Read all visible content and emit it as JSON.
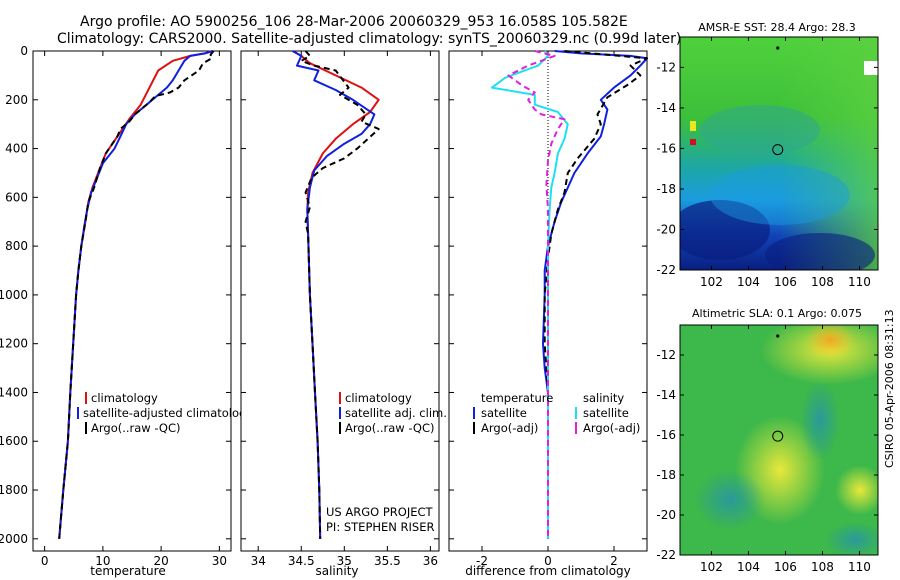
{
  "header": {
    "line1": "Argo profile: AO 5900256_106 28-Mar-2006 20060329_953 16.058S 105.582E",
    "line2": "Climatology: CARS2000. Satellite-adjusted climatology: synTS_20060329.nc (0.99d later)"
  },
  "colors": {
    "climatology": "#e01010",
    "satellite": "#1020e0",
    "argo": "#000000",
    "salinity_sat": "#20e0f0",
    "salinity_argo": "#e020e0"
  },
  "chart_data": [
    {
      "id": "temperature",
      "type": "line",
      "xlabel": "temperature",
      "ylabel": "",
      "xlim": [
        -2,
        32
      ],
      "ylim": [
        2050,
        0
      ],
      "xticks": [
        0,
        10,
        20,
        30
      ],
      "yticks": [
        0,
        200,
        400,
        600,
        800,
        1000,
        1200,
        1400,
        1600,
        1800,
        2000
      ],
      "legend": [
        "climatology",
        "satellite-adjusted climatology",
        "Argo(..raw -QC)"
      ],
      "series": [
        {
          "name": "climatology",
          "color": "#e01010",
          "dash": "",
          "points": [
            [
              28.8,
              0
            ],
            [
              27.5,
              10
            ],
            [
              25,
              20
            ],
            [
              22,
              40
            ],
            [
              19.5,
              80
            ],
            [
              18,
              150
            ],
            [
              16.5,
              220
            ],
            [
              14.5,
              280
            ],
            [
              12.5,
              350
            ],
            [
              10.5,
              420
            ],
            [
              9.5,
              480
            ],
            [
              8.2,
              560
            ],
            [
              7.5,
              620
            ],
            [
              7,
              700
            ],
            [
              6.3,
              800
            ],
            [
              5.8,
              900
            ],
            [
              5.4,
              1000
            ],
            [
              4.9,
              1200
            ],
            [
              4.4,
              1400
            ],
            [
              4,
              1600
            ],
            [
              3.2,
              1800
            ],
            [
              2.5,
              2000
            ]
          ]
        },
        {
          "name": "satellite-adjusted climatology",
          "color": "#1020e0",
          "dash": "",
          "points": [
            [
              28.9,
              0
            ],
            [
              27.5,
              10
            ],
            [
              25,
              20
            ],
            [
              24,
              40
            ],
            [
              23,
              80
            ],
            [
              22,
              120
            ],
            [
              21,
              150
            ],
            [
              19.5,
              180
            ],
            [
              17.5,
              220
            ],
            [
              15.5,
              260
            ],
            [
              14,
              300
            ],
            [
              13,
              350
            ],
            [
              12,
              400
            ],
            [
              10,
              460
            ],
            [
              9,
              520
            ],
            [
              8,
              580
            ],
            [
              7.3,
              650
            ],
            [
              6.8,
              720
            ],
            [
              6.3,
              800
            ],
            [
              5.8,
              900
            ],
            [
              5.4,
              1000
            ],
            [
              4.9,
              1200
            ],
            [
              4.4,
              1400
            ],
            [
              4,
              1600
            ],
            [
              3.2,
              1800
            ],
            [
              2.5,
              2000
            ]
          ]
        },
        {
          "name": "Argo(..raw -QC)",
          "color": "#000000",
          "dash": "6,4",
          "points": [
            [
              29,
              0
            ],
            [
              28.5,
              15
            ],
            [
              28.7,
              30
            ],
            [
              27.2,
              50
            ],
            [
              26.5,
              80
            ],
            [
              24,
              120
            ],
            [
              23,
              150
            ],
            [
              21.5,
              170
            ],
            [
              19,
              185
            ],
            [
              18,
              210
            ],
            [
              17,
              230
            ],
            [
              15.5,
              260
            ],
            [
              14.5,
              290
            ],
            [
              13,
              320
            ],
            [
              12.5,
              350
            ],
            [
              10.5,
              420
            ],
            [
              9.5,
              480
            ],
            [
              8.5,
              560
            ],
            [
              7.5,
              620
            ],
            [
              7,
              700
            ],
            [
              6.3,
              800
            ],
            [
              5.8,
              900
            ],
            [
              5.4,
              1000
            ],
            [
              4.9,
              1200
            ],
            [
              4.4,
              1400
            ],
            [
              4,
              1600
            ],
            [
              3.2,
              1800
            ],
            [
              2.5,
              2000
            ]
          ]
        }
      ]
    },
    {
      "id": "salinity",
      "type": "line",
      "xlabel": "salinity",
      "xlim": [
        33.8,
        36.1
      ],
      "ylim": [
        2050,
        0
      ],
      "xticks": [
        34,
        34.5,
        35,
        35.5,
        36
      ],
      "legend": [
        "climatology",
        "satellite adj. clim.",
        "Argo(..raw -QC)"
      ],
      "annotation": [
        "US ARGO PROJECT",
        "PI: STEPHEN RISER"
      ],
      "series": [
        {
          "name": "climatology",
          "color": "#e01010",
          "dash": "",
          "points": [
            [
              34.4,
              0
            ],
            [
              34.5,
              20
            ],
            [
              34.6,
              50
            ],
            [
              34.9,
              100
            ],
            [
              35.2,
              150
            ],
            [
              35.4,
              200
            ],
            [
              35.3,
              250
            ],
            [
              35.1,
              300
            ],
            [
              34.9,
              360
            ],
            [
              34.75,
              420
            ],
            [
              34.63,
              500
            ],
            [
              34.58,
              580
            ],
            [
              34.57,
              650
            ],
            [
              34.58,
              750
            ],
            [
              34.6,
              1000
            ],
            [
              34.63,
              1200
            ],
            [
              34.66,
              1400
            ],
            [
              34.69,
              1600
            ],
            [
              34.71,
              1800
            ],
            [
              34.72,
              2000
            ]
          ]
        },
        {
          "name": "satellite adj. clim.",
          "color": "#1020e0",
          "dash": "",
          "points": [
            [
              34.4,
              0
            ],
            [
              34.5,
              20
            ],
            [
              34.45,
              60
            ],
            [
              34.7,
              80
            ],
            [
              34.65,
              120
            ],
            [
              34.9,
              160
            ],
            [
              35.1,
              200
            ],
            [
              35.35,
              260
            ],
            [
              35.3,
              300
            ],
            [
              35.2,
              340
            ],
            [
              35,
              380
            ],
            [
              34.8,
              430
            ],
            [
              34.65,
              490
            ],
            [
              34.6,
              560
            ],
            [
              34.57,
              650
            ],
            [
              34.58,
              750
            ],
            [
              34.6,
              1000
            ],
            [
              34.63,
              1200
            ],
            [
              34.66,
              1400
            ],
            [
              34.69,
              1600
            ],
            [
              34.71,
              1800
            ],
            [
              34.72,
              2000
            ]
          ]
        },
        {
          "name": "Argo(..raw -QC)",
          "color": "#000000",
          "dash": "6,4",
          "points": [
            [
              34.55,
              0
            ],
            [
              34.6,
              20
            ],
            [
              34.5,
              40
            ],
            [
              34.65,
              60
            ],
            [
              34.9,
              80
            ],
            [
              35.05,
              150
            ],
            [
              34.95,
              180
            ],
            [
              35.15,
              220
            ],
            [
              35.25,
              260
            ],
            [
              35.2,
              290
            ],
            [
              35.4,
              320
            ],
            [
              35.15,
              400
            ],
            [
              35,
              440
            ],
            [
              34.75,
              480
            ],
            [
              34.62,
              520
            ],
            [
              34.55,
              580
            ],
            [
              34.6,
              640
            ],
            [
              34.55,
              700
            ],
            [
              34.58,
              750
            ],
            [
              34.6,
              1000
            ],
            [
              34.63,
              1200
            ],
            [
              34.66,
              1400
            ],
            [
              34.69,
              1600
            ],
            [
              34.71,
              1800
            ],
            [
              34.72,
              2000
            ]
          ]
        }
      ]
    },
    {
      "id": "difference",
      "type": "line",
      "xlabel": "difference from climatology",
      "xlim": [
        -3,
        3
      ],
      "ylim": [
        2050,
        0
      ],
      "xticks": [
        -2,
        0,
        2
      ],
      "legend_headers": [
        "temperature",
        "salinity"
      ],
      "legend": [
        "satellite",
        "Argo(-adj)",
        "satellite",
        "Argo(-adj)"
      ],
      "series": [
        {
          "name": "temperature satellite",
          "color": "#1020e0",
          "dash": "",
          "points": [
            [
              0.2,
              0
            ],
            [
              1,
              10
            ],
            [
              2.5,
              20
            ],
            [
              3,
              30
            ],
            [
              2.8,
              60
            ],
            [
              2.5,
              100
            ],
            [
              2,
              150
            ],
            [
              1.6,
              200
            ],
            [
              1.8,
              240
            ],
            [
              1.7,
              300
            ],
            [
              1.6,
              350
            ],
            [
              1.2,
              420
            ],
            [
              0.8,
              500
            ],
            [
              0.6,
              560
            ],
            [
              0.4,
              620
            ],
            [
              0.2,
              700
            ],
            [
              0,
              800
            ],
            [
              -0.1,
              900
            ],
            [
              -0.1,
              1000
            ],
            [
              -0.15,
              1200
            ],
            [
              -0.1,
              1300
            ],
            [
              0,
              1400
            ],
            [
              0,
              2000
            ]
          ]
        },
        {
          "name": "temperature Argo(-adj)",
          "color": "#000000",
          "dash": "6,4",
          "points": [
            [
              0.5,
              0
            ],
            [
              3,
              30
            ],
            [
              2.5,
              60
            ],
            [
              2.8,
              100
            ],
            [
              2.4,
              140
            ],
            [
              1.8,
              190
            ],
            [
              1.5,
              260
            ],
            [
              1.6,
              300
            ],
            [
              1.4,
              360
            ],
            [
              0.9,
              440
            ],
            [
              0.6,
              500
            ],
            [
              0.5,
              580
            ],
            [
              0.3,
              650
            ],
            [
              0.1,
              750
            ],
            [
              0,
              850
            ],
            [
              -0.1,
              1000
            ],
            [
              -0.1,
              1200
            ],
            [
              0,
              1400
            ],
            [
              0,
              2000
            ]
          ]
        },
        {
          "name": "salinity satellite",
          "color": "#20e0f0",
          "dash": "",
          "points": [
            [
              -0.1,
              0
            ],
            [
              0,
              20
            ],
            [
              -0.3,
              60
            ],
            [
              -1.3,
              110
            ],
            [
              -1.7,
              150
            ],
            [
              -0.4,
              180
            ],
            [
              -0.4,
              220
            ],
            [
              0.3,
              250
            ],
            [
              0.6,
              300
            ],
            [
              0.5,
              360
            ],
            [
              0.3,
              420
            ],
            [
              0.2,
              500
            ],
            [
              0.1,
              560
            ],
            [
              0.05,
              650
            ],
            [
              0,
              800
            ],
            [
              0,
              2000
            ]
          ]
        },
        {
          "name": "salinity Argo(-adj)",
          "color": "#e020e0",
          "dash": "6,4",
          "points": [
            [
              -0.4,
              0
            ],
            [
              0.2,
              20
            ],
            [
              -0.2,
              40
            ],
            [
              -0.6,
              60
            ],
            [
              -1.2,
              100
            ],
            [
              -0.8,
              140
            ],
            [
              -0.4,
              170
            ],
            [
              -0.6,
              200
            ],
            [
              -0.4,
              240
            ],
            [
              -0.2,
              260
            ],
            [
              0.5,
              280
            ],
            [
              0.3,
              320
            ],
            [
              0.1,
              380
            ],
            [
              0,
              450
            ],
            [
              -0.05,
              550
            ],
            [
              0,
              650
            ],
            [
              0,
              800
            ],
            [
              0,
              2000
            ]
          ]
        }
      ]
    },
    {
      "id": "sst_map",
      "type": "heatmap",
      "title": "AMSR-E SST: 28.4 Argo: 28.3",
      "xlim": [
        100.3,
        111
      ],
      "ylim": [
        -22,
        -10.5
      ],
      "xticks": [
        102,
        104,
        106,
        108,
        110
      ],
      "yticks": [
        -12,
        -14,
        -16,
        -18,
        -20,
        -22
      ],
      "marker": [
        105.582,
        -16.058
      ]
    },
    {
      "id": "sla_map",
      "type": "heatmap",
      "title": "Altimetric SLA: 0.1 Argo: 0.075",
      "xlim": [
        100.3,
        111
      ],
      "ylim": [
        -22,
        -10.5
      ],
      "xticks": [
        102,
        104,
        106,
        108,
        110
      ],
      "yticks": [
        -12,
        -14,
        -16,
        -18,
        -20,
        -22
      ],
      "marker": [
        105.582,
        -16.058
      ]
    }
  ],
  "footer": {
    "side_label": "CSIRO 05-Apr-2006 08:31:13"
  }
}
